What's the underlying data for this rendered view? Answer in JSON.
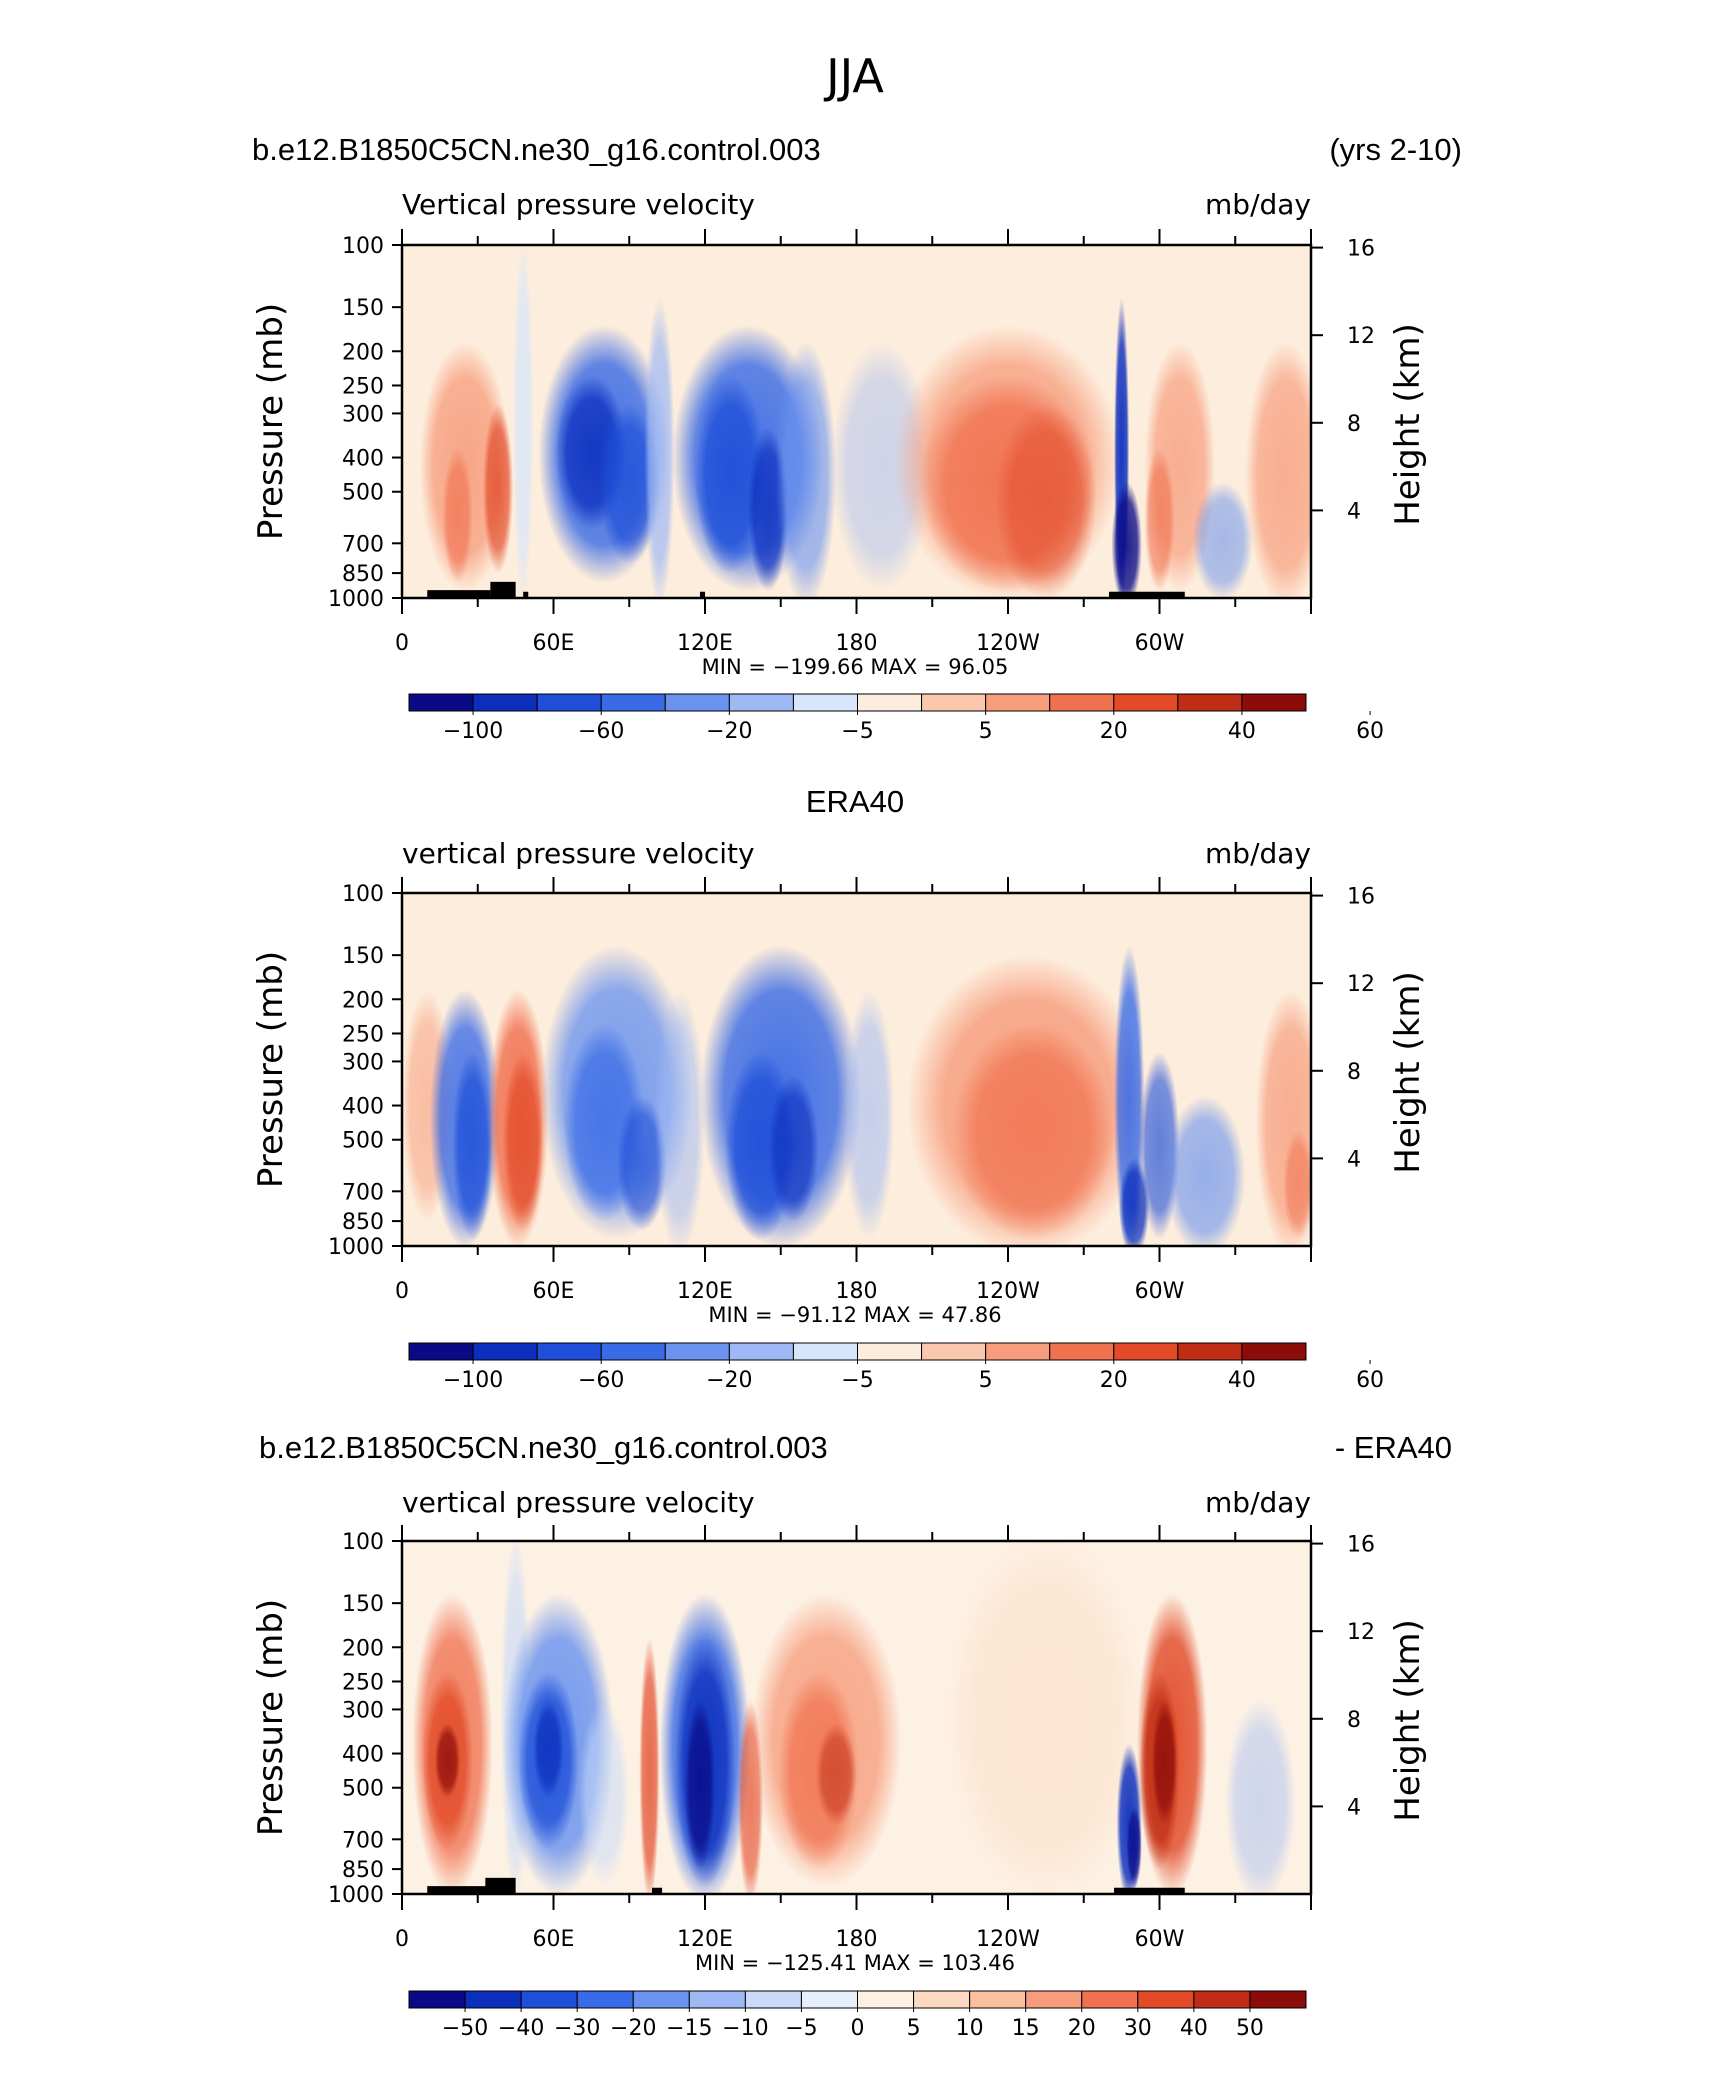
{
  "page_title": "JJA",
  "colors": {
    "scale11": [
      "#0a0a87",
      "#0b2ebd",
      "#1f4fd8",
      "#3a6be6",
      "#6a93ef",
      "#9fb9f4",
      "#d7e6fb",
      "#fdeddc",
      "#fbc8ae",
      "#f79d7d",
      "#f0714f",
      "#e24a28",
      "#c02d14",
      "#8c0c0a"
    ],
    "diff": [
      "#0a0a87",
      "#0b2ebd",
      "#1f4fd8",
      "#3a6be6",
      "#6a93ef",
      "#9fb9f4",
      "#c8daf8",
      "#e6f0fc",
      "#fdf1e4",
      "#fcd9c0",
      "#fbc0a0",
      "#f79d7d",
      "#f0714f",
      "#e24a28",
      "#c02d14",
      "#8c0c0a"
    ],
    "land_mask": "#000000"
  },
  "panels": [
    {
      "id": "model",
      "header_left": "b.e12.B1850C5CN.ne30_g16.control.003",
      "header_right": "(yrs 2-10)",
      "subtitle_left": "Vertical pressure velocity",
      "subtitle_right": "mb/day",
      "stats": "MIN = −199.66   MAX =   96.05",
      "colorbar_labels": [
        "−100",
        "−60",
        "−20",
        "−5",
        "5",
        "20",
        "40",
        "60"
      ]
    },
    {
      "id": "obs",
      "header_center": "ERA40",
      "subtitle_left": "vertical pressure velocity",
      "subtitle_right": "mb/day",
      "stats": "MIN = −91.12   MAX =   47.86",
      "colorbar_labels": [
        "−100",
        "−60",
        "−20",
        "−5",
        "5",
        "20",
        "40",
        "60"
      ]
    },
    {
      "id": "diff",
      "header_left": "b.e12.B1850C5CN.ne30_g16.control.003",
      "header_right": "- ERA40",
      "subtitle_left": "vertical pressure velocity",
      "subtitle_right": "mb/day",
      "stats": "MIN = −125.41   MAX = 103.46",
      "colorbar_labels": [
        "−50",
        "−40",
        "−30",
        "−20",
        "−15",
        "−10",
        "−5",
        "0",
        "5",
        "10",
        "15",
        "20",
        "30",
        "40",
        "50"
      ]
    }
  ],
  "axes": {
    "ylabel_left": "Pressure (mb)",
    "ylabel_right": "Height (km)",
    "pressure_ticks": [
      "100",
      "150",
      "200",
      "250",
      "300",
      "400",
      "500",
      "700",
      "850",
      "1000"
    ],
    "height_ticks": [
      "16",
      "12",
      "8",
      "4"
    ],
    "lon_labels": [
      "0",
      "60E",
      "120E",
      "180",
      "120W",
      "60W"
    ]
  },
  "chart_data": [
    {
      "type": "heatmap",
      "title": "b.e12.B1850C5CN.ne30_g16.control.003",
      "subtitle": "Vertical pressure velocity",
      "units": "mb/day",
      "x": "longitude 0–360",
      "y": "pressure 1000–100 mb",
      "ylim": [
        1000,
        100
      ],
      "min": -199.66,
      "max": 96.05,
      "levels": [
        -100,
        -80,
        -60,
        -40,
        -20,
        -10,
        -5,
        -2,
        5,
        10,
        20,
        30,
        40,
        50,
        60
      ],
      "features": [
        {
          "lon": [
            10,
            35
          ],
          "sign": "+",
          "peak": 20
        },
        {
          "lon": [
            55,
            95
          ],
          "sign": "-",
          "peak": -80
        },
        {
          "lon": [
            110,
            160
          ],
          "sign": "-",
          "peak": -80
        },
        {
          "lon": [
            200,
            280
          ],
          "sign": "+",
          "peak": 30
        },
        {
          "lon": [
            285,
            290
          ],
          "sign": "-",
          "peak": -100
        },
        {
          "lon": [
            340,
            360
          ],
          "sign": "+",
          "peak": 10
        }
      ]
    },
    {
      "type": "heatmap",
      "title": "ERA40",
      "subtitle": "vertical pressure velocity",
      "units": "mb/day",
      "ylim": [
        1000,
        100
      ],
      "min": -91.12,
      "max": 47.86,
      "levels": [
        -100,
        -80,
        -60,
        -40,
        -20,
        -10,
        -5,
        -2,
        5,
        10,
        20,
        30,
        40,
        50,
        60
      ]
    },
    {
      "type": "heatmap",
      "title": "b.e12.B1850C5CN.ne30_g16.control.003 - ERA40",
      "subtitle": "vertical pressure velocity",
      "units": "mb/day",
      "ylim": [
        1000,
        100
      ],
      "min": -125.41,
      "max": 103.46,
      "levels": [
        -60,
        -50,
        -40,
        -30,
        -20,
        -15,
        -10,
        -5,
        0,
        5,
        10,
        15,
        20,
        30,
        40,
        50,
        60
      ]
    }
  ]
}
